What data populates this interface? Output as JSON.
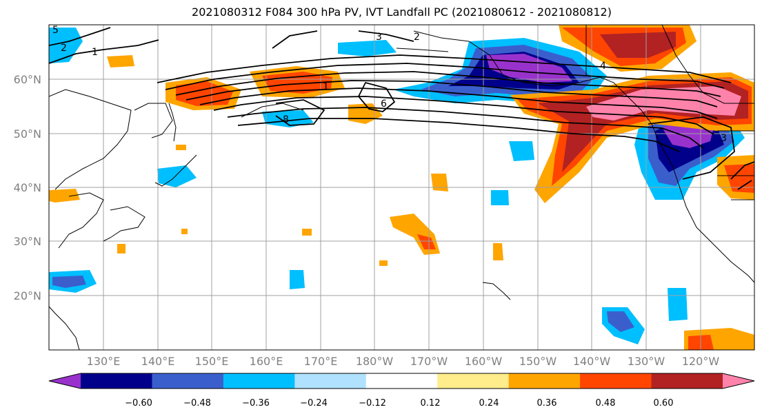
{
  "title": "2021080312 F084 300 hPa PV, IVT Landfall PC (2021080612 - 2021080812)",
  "lat_labels": [
    "60°N",
    "50°N",
    "40°N",
    "30°N",
    "20°N"
  ],
  "lon_labels": [
    "130°E",
    "140°E",
    "150°E",
    "160°E",
    "170°E",
    "180°W",
    "170°W",
    "160°W",
    "150°W",
    "140°W",
    "130°W",
    "120°W"
  ],
  "contour_labels": [
    "1",
    "1",
    "2",
    "2",
    "3",
    "3",
    "4",
    "5",
    "6",
    "8"
  ],
  "colorbar": {
    "ticks": [
      "−0.60",
      "−0.48",
      "−0.36",
      "−0.24",
      "−0.12",
      "0.12",
      "0.24",
      "0.36",
      "0.48",
      "0.60"
    ],
    "colors": [
      "#9932cc",
      "#00008b",
      "#3a5fcd",
      "#00bfff",
      "#b0e2ff",
      "#ffffff",
      "#ffec8b",
      "#ffa500",
      "#ff4500",
      "#b22222",
      "#ff82ab"
    ]
  },
  "colors": {
    "coast": "#000000",
    "grid": "#a0a0a0",
    "label_gray": "#808080"
  }
}
